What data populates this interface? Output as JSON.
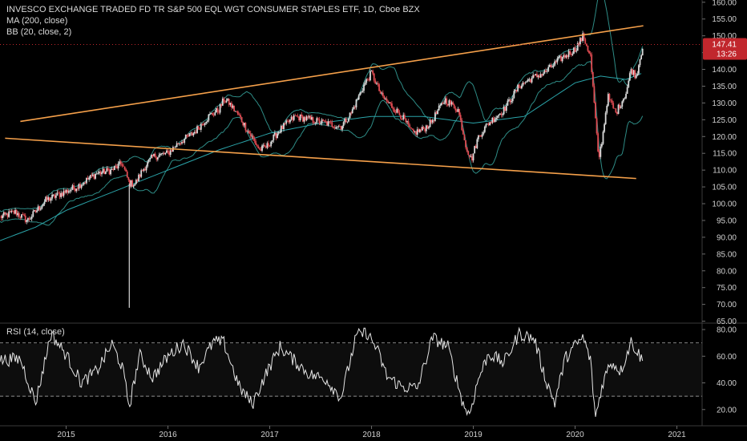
{
  "legend": {
    "title": "INVESCO EXCHANGE TRADED FD TR S&P 500 EQL WGT CONSUMER STAPLES ETF, 1D, Cboe BZX",
    "ma": "MA (200, close)",
    "bb": "BB (20, close, 2)",
    "rsi": "RSI (14, close)"
  },
  "price_tag": {
    "price": "147.41",
    "countdown": "13:26"
  },
  "colors": {
    "background": "#000000",
    "trendline": "#f5a04a",
    "bands": "#2e8c86",
    "ma": "#2aa3a8",
    "candle_up": "#d9d9d9",
    "candle_down": "#e04b52",
    "rsi": "#e6e6e6",
    "price_tag": "#c1272d"
  },
  "chart_data": [
    {
      "type": "candlestick",
      "title": "INVESCO EXCHANGE TRADED FD TR S&P 500 EQL WGT CONSUMER STAPLES ETF, 1D, Cboe BZX",
      "x_ticks": [
        "2015",
        "2016",
        "2017",
        "2018",
        "2019",
        "2020",
        "2021"
      ],
      "y_ticks": [
        "65.00",
        "70.00",
        "75.00",
        "80.00",
        "85.00",
        "90.00",
        "95.00",
        "100.00",
        "105.00",
        "110.00",
        "115.00",
        "120.00",
        "125.00",
        "130.00",
        "135.00",
        "140.00",
        "145.00",
        "150.00",
        "155.00",
        "160.00"
      ],
      "ylim": [
        65,
        160
      ],
      "xlim": [
        2014.35,
        2021.35
      ],
      "close_path": [
        [
          2014.35,
          96
        ],
        [
          2014.5,
          97.5
        ],
        [
          2014.62,
          95
        ],
        [
          2014.8,
          101
        ],
        [
          2014.95,
          103
        ],
        [
          2015.1,
          105
        ],
        [
          2015.3,
          109
        ],
        [
          2015.45,
          110
        ],
        [
          2015.55,
          112
        ],
        [
          2015.62,
          106
        ],
        [
          2015.68,
          106
        ],
        [
          2015.75,
          110
        ],
        [
          2015.85,
          114
        ],
        [
          2016.0,
          115
        ],
        [
          2016.1,
          118
        ],
        [
          2016.25,
          121
        ],
        [
          2016.4,
          126
        ],
        [
          2016.5,
          128
        ],
        [
          2016.55,
          131
        ],
        [
          2016.6,
          130
        ],
        [
          2016.7,
          126
        ],
        [
          2016.82,
          120
        ],
        [
          2016.9,
          116
        ],
        [
          2016.97,
          117
        ],
        [
          2017.1,
          122
        ],
        [
          2017.25,
          126
        ],
        [
          2017.4,
          125
        ],
        [
          2017.55,
          124
        ],
        [
          2017.7,
          123
        ],
        [
          2017.8,
          127
        ],
        [
          2017.92,
          135
        ],
        [
          2018.0,
          139
        ],
        [
          2018.1,
          132
        ],
        [
          2018.2,
          129
        ],
        [
          2018.3,
          126
        ],
        [
          2018.4,
          121
        ],
        [
          2018.5,
          122
        ],
        [
          2018.58,
          124
        ],
        [
          2018.72,
          131
        ],
        [
          2018.85,
          128
        ],
        [
          2018.93,
          117
        ],
        [
          2018.98,
          113
        ],
        [
          2019.05,
          120
        ],
        [
          2019.15,
          124
        ],
        [
          2019.3,
          128
        ],
        [
          2019.45,
          135
        ],
        [
          2019.55,
          137
        ],
        [
          2019.7,
          139
        ],
        [
          2019.85,
          143
        ],
        [
          2020.0,
          146
        ],
        [
          2020.08,
          150
        ],
        [
          2020.15,
          144
        ],
        [
          2020.2,
          125
        ],
        [
          2020.23,
          113
        ],
        [
          2020.27,
          120
        ],
        [
          2020.32,
          132
        ],
        [
          2020.4,
          127
        ],
        [
          2020.5,
          133
        ],
        [
          2020.55,
          140
        ],
        [
          2020.6,
          138
        ],
        [
          2020.67,
          148
        ]
      ],
      "ma_path": [
        [
          2014.35,
          89
        ],
        [
          2014.7,
          93
        ],
        [
          2015.0,
          98
        ],
        [
          2015.5,
          104
        ],
        [
          2016.0,
          110
        ],
        [
          2016.5,
          116
        ],
        [
          2017.0,
          121
        ],
        [
          2017.5,
          124
        ],
        [
          2018.0,
          126
        ],
        [
          2018.5,
          126
        ],
        [
          2019.0,
          124
        ],
        [
          2019.5,
          126
        ],
        [
          2020.0,
          136
        ],
        [
          2020.25,
          138
        ],
        [
          2020.5,
          137
        ],
        [
          2020.67,
          139
        ]
      ],
      "spike": {
        "x": 2015.62,
        "low": 69
      },
      "trendlines": [
        {
          "x1": 2014.55,
          "y1": 124.5,
          "x2": 2020.67,
          "y2": 153
        },
        {
          "x1": 2014.4,
          "y1": 119.5,
          "x2": 2020.6,
          "y2": 107.5
        }
      ],
      "last_price": 147.41
    },
    {
      "type": "line",
      "title": "RSI (14, close)",
      "y_ticks": [
        "20.00",
        "40.00",
        "60.00",
        "80.00"
      ],
      "ylim": [
        12,
        82
      ],
      "bands": [
        30,
        70
      ],
      "rsi_path": [
        [
          2014.35,
          57
        ],
        [
          2014.55,
          58
        ],
        [
          2014.7,
          25
        ],
        [
          2014.85,
          77
        ],
        [
          2015.0,
          61
        ],
        [
          2015.15,
          40
        ],
        [
          2015.3,
          49
        ],
        [
          2015.45,
          69
        ],
        [
          2015.55,
          52
        ],
        [
          2015.62,
          22
        ],
        [
          2015.72,
          61
        ],
        [
          2015.85,
          44
        ],
        [
          2016.0,
          60
        ],
        [
          2016.15,
          70
        ],
        [
          2016.3,
          52
        ],
        [
          2016.45,
          71
        ],
        [
          2016.55,
          70
        ],
        [
          2016.7,
          37
        ],
        [
          2016.83,
          24
        ],
        [
          2016.95,
          45
        ],
        [
          2017.1,
          67
        ],
        [
          2017.25,
          56
        ],
        [
          2017.4,
          46
        ],
        [
          2017.55,
          43
        ],
        [
          2017.7,
          29
        ],
        [
          2017.85,
          75
        ],
        [
          2017.95,
          78
        ],
        [
          2018.05,
          66
        ],
        [
          2018.15,
          45
        ],
        [
          2018.3,
          37
        ],
        [
          2018.45,
          36
        ],
        [
          2018.6,
          74
        ],
        [
          2018.75,
          67
        ],
        [
          2018.9,
          24
        ],
        [
          2018.96,
          16
        ],
        [
          2019.05,
          43
        ],
        [
          2019.15,
          62
        ],
        [
          2019.3,
          55
        ],
        [
          2019.45,
          77
        ],
        [
          2019.6,
          73
        ],
        [
          2019.7,
          45
        ],
        [
          2019.8,
          25
        ],
        [
          2019.9,
          58
        ],
        [
          2020.0,
          68
        ],
        [
          2020.08,
          74
        ],
        [
          2020.15,
          57
        ],
        [
          2020.2,
          14
        ],
        [
          2020.27,
          40
        ],
        [
          2020.35,
          56
        ],
        [
          2020.45,
          49
        ],
        [
          2020.55,
          71
        ],
        [
          2020.67,
          56
        ]
      ]
    }
  ]
}
